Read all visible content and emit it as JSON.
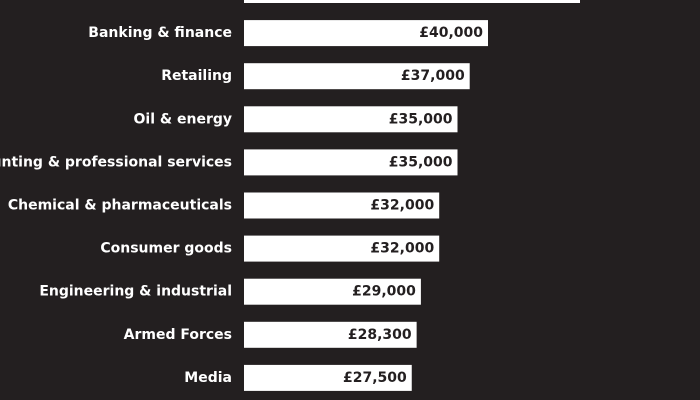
{
  "chart_data": {
    "type": "bar",
    "orientation": "horizontal",
    "categories": [
      "",
      "Banking & finance",
      "Retailing",
      "Oil & energy",
      "Accounting & professional services",
      "Chemical & pharmaceuticals",
      "Consumer goods",
      "Engineering & industrial",
      "Armed Forces",
      "Media"
    ],
    "values": [
      null,
      40000,
      37000,
      35000,
      35000,
      32000,
      32000,
      29000,
      28300,
      27500
    ],
    "value_labels": [
      "",
      "£40,000",
      "£37,000",
      "£35,000",
      "£35,000",
      "£32,000",
      "£32,000",
      "£29,000",
      "£28,300",
      "£27,500"
    ],
    "partial_first_bar": true,
    "colors": {
      "background": "#231f20",
      "bar": "#ffffff",
      "label": "#ffffff",
      "value_text": "#231f20"
    }
  }
}
